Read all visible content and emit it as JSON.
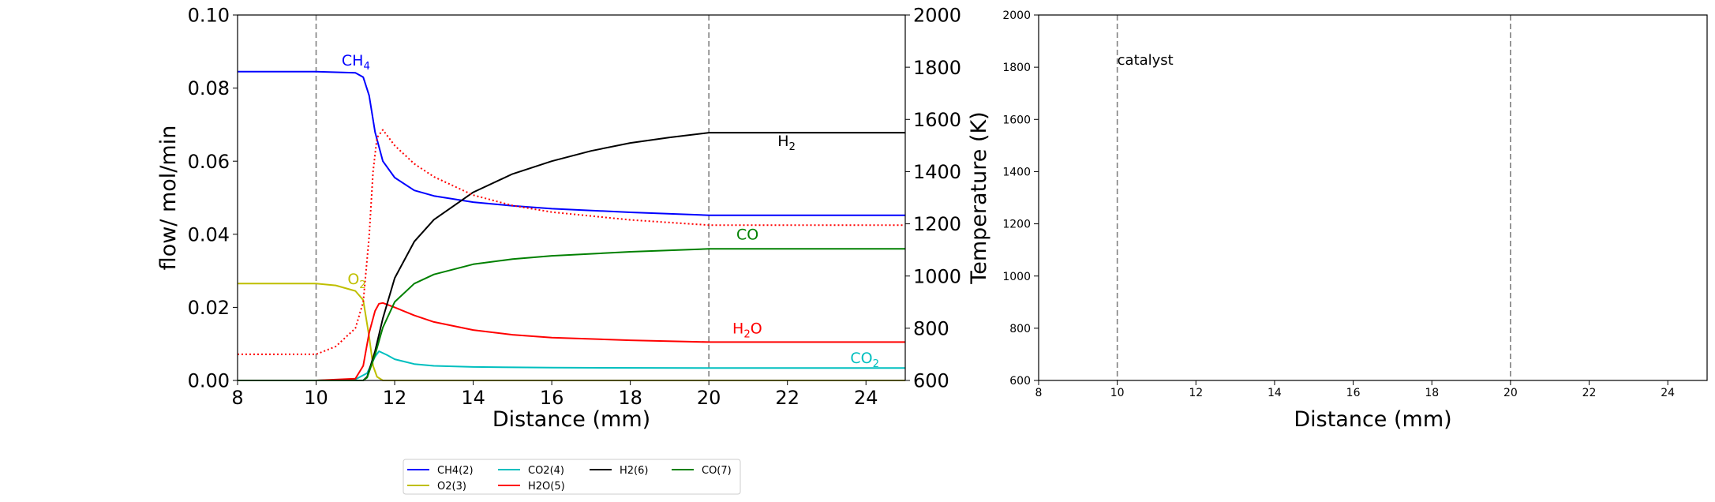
{
  "chart_data": [
    {
      "type": "line",
      "xlabel": "Distance (mm)",
      "ylabel": "flow/ mol/min",
      "ylabel_right": "Temperature (K)",
      "xlim": [
        8,
        25
      ],
      "ylim": [
        0,
        0.1
      ],
      "ylim_right": [
        600,
        2000
      ],
      "x_ticks": [
        "8",
        "10",
        "12",
        "14",
        "16",
        "18",
        "20",
        "22",
        "24"
      ],
      "y_ticks": [
        "0.00",
        "0.02",
        "0.04",
        "0.06",
        "0.08",
        "0.10"
      ],
      "y_ticks_right": [
        "600",
        "800",
        "1000",
        "1200",
        "1400",
        "1600",
        "1800",
        "2000"
      ],
      "vlines": [
        10,
        20
      ],
      "grid": false,
      "series": [
        {
          "name": "CH4(2)",
          "color": "#0000ff",
          "x": [
            8,
            10,
            11,
            11.2,
            11.35,
            11.5,
            11.7,
            12,
            12.5,
            13,
            14,
            15,
            16,
            18,
            20,
            25
          ],
          "y": [
            0.0845,
            0.0845,
            0.0842,
            0.083,
            0.078,
            0.068,
            0.06,
            0.0555,
            0.052,
            0.0505,
            0.0488,
            0.0478,
            0.047,
            0.046,
            0.0452,
            0.0452
          ]
        },
        {
          "name": "O2(3)",
          "color": "#bfbf00",
          "x": [
            8,
            10,
            10.5,
            11,
            11.2,
            11.35,
            11.45,
            11.55,
            11.7,
            12,
            25
          ],
          "y": [
            0.0265,
            0.0265,
            0.026,
            0.0245,
            0.022,
            0.012,
            0.004,
            0.001,
            0.0,
            0.0,
            0.0
          ]
        },
        {
          "name": "CO2(4)",
          "color": "#00bfbf",
          "x": [
            8,
            10,
            11,
            11.3,
            11.5,
            11.6,
            11.8,
            12,
            12.5,
            13,
            14,
            16,
            20,
            25
          ],
          "y": [
            0.0,
            0.0,
            0.0003,
            0.002,
            0.0065,
            0.008,
            0.007,
            0.0058,
            0.0045,
            0.004,
            0.0037,
            0.0035,
            0.0034,
            0.0034
          ]
        },
        {
          "name": "H2O(5)",
          "color": "#ff0000",
          "x": [
            8,
            10,
            11,
            11.2,
            11.35,
            11.5,
            11.6,
            11.7,
            12,
            12.5,
            13,
            14,
            15,
            16,
            18,
            20,
            25
          ],
          "y": [
            0.0,
            0.0,
            0.0005,
            0.004,
            0.013,
            0.019,
            0.021,
            0.0212,
            0.02,
            0.0178,
            0.016,
            0.0138,
            0.0125,
            0.0117,
            0.011,
            0.0105,
            0.0105
          ]
        },
        {
          "name": "H2(6)",
          "color": "#000000",
          "x": [
            8,
            11.2,
            11.3,
            11.5,
            11.7,
            12,
            12.5,
            13,
            14,
            15,
            16,
            17,
            18,
            19,
            20,
            25
          ],
          "y": [
            0.0,
            0.0,
            0.001,
            0.008,
            0.017,
            0.028,
            0.038,
            0.044,
            0.0515,
            0.0565,
            0.06,
            0.0628,
            0.065,
            0.0665,
            0.0678,
            0.0678
          ]
        },
        {
          "name": "CO(7)",
          "color": "#008000",
          "x": [
            8,
            11.2,
            11.3,
            11.5,
            11.7,
            12,
            12.5,
            13,
            14,
            15,
            16,
            18,
            20,
            25
          ],
          "y": [
            0.0,
            0.0,
            0.0008,
            0.007,
            0.0145,
            0.0215,
            0.0265,
            0.029,
            0.0318,
            0.0332,
            0.0341,
            0.0352,
            0.036,
            0.036
          ]
        },
        {
          "name": "Temperature",
          "axis": "right",
          "color": "#ff0000",
          "dash": "dotted",
          "x": [
            8,
            10,
            10.5,
            11,
            11.2,
            11.35,
            11.45,
            11.55,
            11.7,
            12,
            12.5,
            13,
            14,
            15,
            16,
            18,
            20,
            25
          ],
          "y": [
            700,
            700,
            730,
            800,
            900,
            1150,
            1400,
            1530,
            1560,
            1500,
            1430,
            1380,
            1310,
            1270,
            1245,
            1215,
            1195,
            1195
          ]
        }
      ],
      "annotations": [
        {
          "text": "CH",
          "sub": "4",
          "x": 10.65,
          "y": 0.0862,
          "color": "#0000ff"
        },
        {
          "text": "O",
          "sub": "2",
          "x": 10.8,
          "y": 0.0263,
          "color": "#bfbf00"
        },
        {
          "text": "H",
          "sub": "2",
          "x": 21.75,
          "y": 0.0642,
          "color": "#000000"
        },
        {
          "text": "CO",
          "x": 20.7,
          "y": 0.0385,
          "color": "#008000"
        },
        {
          "text": "H",
          "sub": "2",
          "text2": "O",
          "x": 20.6,
          "y": 0.0128,
          "color": "#ff0000"
        },
        {
          "text": "CO",
          "sub": "2",
          "x": 23.6,
          "y": 0.0048,
          "color": "#00bfbf"
        }
      ]
    },
    {
      "type": "line",
      "xlabel": "Distance (mm)",
      "xlim": [
        8,
        25
      ],
      "ylim": [
        600,
        2000
      ],
      "x_ticks": [
        "8",
        "10",
        "12",
        "14",
        "16",
        "18",
        "20",
        "22",
        "24"
      ],
      "y_ticks": [
        "600",
        "800",
        "1000",
        "1200",
        "1400",
        "1600",
        "1800",
        "2000"
      ],
      "vlines": [
        10,
        20
      ],
      "grid": false,
      "series": [],
      "annotations": [
        {
          "text": "catalyst",
          "x": 10.0,
          "y": 1810,
          "color": "#000000"
        }
      ]
    }
  ],
  "legend": {
    "placement": "bottom-center",
    "entries": [
      {
        "label": "CH4(2)",
        "color": "#0000ff"
      },
      {
        "label": "CO2(4)",
        "color": "#00bfbf"
      },
      {
        "label": "H2(6)",
        "color": "#000000"
      },
      {
        "label": "CO(7)",
        "color": "#008000"
      },
      {
        "label": "O2(3)",
        "color": "#bfbf00"
      },
      {
        "label": "H2O(5)",
        "color": "#ff0000"
      }
    ]
  }
}
